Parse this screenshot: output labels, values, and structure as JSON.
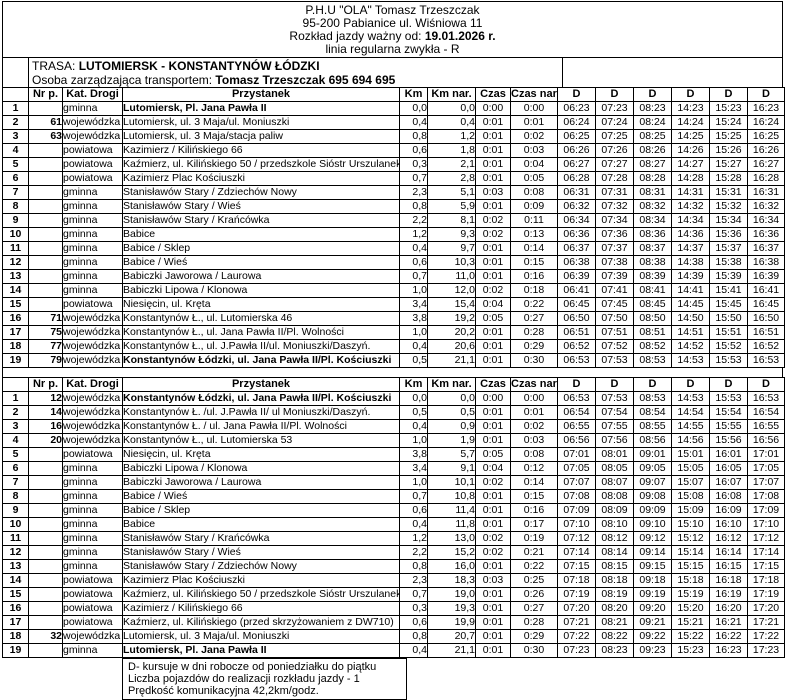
{
  "header": {
    "company": "P.H.U  \"OLA\" Tomasz Trzeszczak",
    "address": "95-200 Pabianice ul. Wiśniowa 11",
    "valid_label": "Rozkład jazdy ważny od: ",
    "valid_date": "19.01.2026 r.",
    "line_type": "linia regularna zwykła - R"
  },
  "route": {
    "trasa_label": "TRASA: ",
    "trasa_value": "LUTOMIERSK - KONSTANTYNÓW ŁÓDZKI",
    "manager_label": "Osoba zarządzająca transportem: ",
    "manager_value": "Tomasz Trzeszczak 695 694 695"
  },
  "columns": [
    "",
    "Nr p.",
    "Kat. Drogi",
    "Przystanek",
    "Km",
    "Km nar.",
    "Czas",
    "Czas nar.",
    "D",
    "D",
    "D",
    "D",
    "D",
    "D"
  ],
  "table1": {
    "rows": [
      {
        "c": [
          "1",
          "",
          "gminna",
          "Lutomiersk, Pl. Jana Pawła II",
          "0,0",
          "0,0",
          "0:00",
          "0:00",
          "06:23",
          "07:23",
          "08:23",
          "14:23",
          "15:23",
          "16:23"
        ],
        "b": true
      },
      {
        "c": [
          "2",
          "61",
          "wojewódzka",
          "Lutomiersk, ul. 3 Maja/ul. Moniuszki",
          "0,4",
          "0,4",
          "0:01",
          "0:01",
          "06:24",
          "07:24",
          "08:24",
          "14:24",
          "15:24",
          "16:24"
        ]
      },
      {
        "c": [
          "3",
          "63",
          "wojewódzka",
          "Lutomiersk, ul. 3 Maja/stacja paliw",
          "0,8",
          "1,2",
          "0:01",
          "0:02",
          "06:25",
          "07:25",
          "08:25",
          "14:25",
          "15:25",
          "16:25"
        ]
      },
      {
        "c": [
          "4",
          "",
          "powiatowa",
          "Kazimierz / Kilińskiego 66",
          "0,6",
          "1,8",
          "0:01",
          "0:03",
          "06:26",
          "07:26",
          "08:26",
          "14:26",
          "15:26",
          "16:26"
        ]
      },
      {
        "c": [
          "5",
          "",
          "powiatowa",
          "Kaźmierz, ul. Kilińskiego 50 / przedszkole Sióstr Urszulanek",
          "0,3",
          "2,1",
          "0:01",
          "0:04",
          "06:27",
          "07:27",
          "08:27",
          "14:27",
          "15:27",
          "16:27"
        ]
      },
      {
        "c": [
          "6",
          "",
          "powiatowa",
          "Kazimierz Plac Kościuszki",
          "0,7",
          "2,8",
          "0:01",
          "0:05",
          "06:28",
          "07:28",
          "08:28",
          "14:28",
          "15:28",
          "16:28"
        ]
      },
      {
        "c": [
          "7",
          "",
          "gminna",
          "Stanisławów Stary / Zdziechów Nowy",
          "2,3",
          "5,1",
          "0:03",
          "0:08",
          "06:31",
          "07:31",
          "08:31",
          "14:31",
          "15:31",
          "16:31"
        ]
      },
      {
        "c": [
          "8",
          "",
          "gminna",
          "Stanisławów Stary / Wieś",
          "0,8",
          "5,9",
          "0:01",
          "0:09",
          "06:32",
          "07:32",
          "08:32",
          "14:32",
          "15:32",
          "16:32"
        ]
      },
      {
        "c": [
          "9",
          "",
          "gminna",
          "Stanisławów Stary / Krańcówka",
          "2,2",
          "8,1",
          "0:02",
          "0:11",
          "06:34",
          "07:34",
          "08:34",
          "14:34",
          "15:34",
          "16:34"
        ]
      },
      {
        "c": [
          "10",
          "",
          "gminna",
          "Babice",
          "1,2",
          "9,3",
          "0:02",
          "0:13",
          "06:36",
          "07:36",
          "08:36",
          "14:36",
          "15:36",
          "16:36"
        ]
      },
      {
        "c": [
          "11",
          "",
          "gminna",
          "Babice / Sklep",
          "0,4",
          "9,7",
          "0:01",
          "0:14",
          "06:37",
          "07:37",
          "08:37",
          "14:37",
          "15:37",
          "16:37"
        ]
      },
      {
        "c": [
          "12",
          "",
          "gminna",
          "Babice / Wieś",
          "0,6",
          "10,3",
          "0:01",
          "0:15",
          "06:38",
          "07:38",
          "08:38",
          "14:38",
          "15:38",
          "16:38"
        ]
      },
      {
        "c": [
          "13",
          "",
          "gminna",
          "Babiczki Jaworowa / Laurowa",
          "0,7",
          "11,0",
          "0:01",
          "0:16",
          "06:39",
          "07:39",
          "08:39",
          "14:39",
          "15:39",
          "16:39"
        ]
      },
      {
        "c": [
          "14",
          "",
          "gminna",
          "Babiczki Lipowa / Klonowa",
          "1,0",
          "12,0",
          "0:02",
          "0:18",
          "06:41",
          "07:41",
          "08:41",
          "14:41",
          "15:41",
          "16:41"
        ]
      },
      {
        "c": [
          "15",
          "",
          "powiatowa",
          "Niesięcin, ul. Kręta",
          "3,4",
          "15,4",
          "0:04",
          "0:22",
          "06:45",
          "07:45",
          "08:45",
          "14:45",
          "15:45",
          "16:45"
        ]
      },
      {
        "c": [
          "16",
          "71",
          "wojewódzka",
          "Konstantynów Ł., ul. Lutomierska 46",
          "3,8",
          "19,2",
          "0:05",
          "0:27",
          "06:50",
          "07:50",
          "08:50",
          "14:50",
          "15:50",
          "16:50"
        ]
      },
      {
        "c": [
          "17",
          "75",
          "wojewódzka",
          "Konstantynów Ł., ul. Jana Pawła II/Pl. Wolności",
          "1,0",
          "20,2",
          "0:01",
          "0:28",
          "06:51",
          "07:51",
          "08:51",
          "14:51",
          "15:51",
          "16:51"
        ]
      },
      {
        "c": [
          "18",
          "77",
          "wojewódzka",
          "Konstantynów Ł., ul. J.Pawła II/ul. Moniuszki/Daszyń.",
          "0,4",
          "20,6",
          "0:01",
          "0:29",
          "06:52",
          "07:52",
          "08:52",
          "14:52",
          "15:52",
          "16:52"
        ]
      },
      {
        "c": [
          "19",
          "79",
          "wojewódzka",
          "Konstantynów Łódzki, ul. Jana Pawła II/Pl. Kościuszki",
          "0,5",
          "21,1",
          "0:01",
          "0:30",
          "06:53",
          "07:53",
          "08:53",
          "14:53",
          "15:53",
          "16:53"
        ],
        "b": true
      }
    ]
  },
  "table2": {
    "rows": [
      {
        "c": [
          "1",
          "12",
          "wojewódzka",
          "Konstantynów Łódzki, ul. Jana Pawła II/Pl. Kościuszki",
          "0,0",
          "0,0",
          "0:00",
          "0:00",
          "06:53",
          "07:53",
          "08:53",
          "14:53",
          "15:53",
          "16:53"
        ],
        "b": true
      },
      {
        "c": [
          "2",
          "14",
          "wojewódzka",
          "Konstantynów Ł. /ul. J.Pawła II/ ul Moniuszki/Daszyń.",
          "0,5",
          "0,5",
          "0:01",
          "0:01",
          "06:54",
          "07:54",
          "08:54",
          "14:54",
          "15:54",
          "16:54"
        ]
      },
      {
        "c": [
          "3",
          "16",
          "wojewódzka",
          "Konstantynów Ł. / ul. Jana Pawła II/Pl. Wolności",
          "0,4",
          "0,9",
          "0:01",
          "0:02",
          "06:55",
          "07:55",
          "08:55",
          "14:55",
          "15:55",
          "16:55"
        ]
      },
      {
        "c": [
          "4",
          "20",
          "wojewódzka",
          "Konstantynów Ł., ul. Lutomierska 53",
          "1,0",
          "1,9",
          "0:01",
          "0:03",
          "06:56",
          "07:56",
          "08:56",
          "14:56",
          "15:56",
          "16:56"
        ]
      },
      {
        "c": [
          "5",
          "",
          "powiatowa",
          "Niesięcin, ul. Kręta",
          "3,8",
          "5,7",
          "0:05",
          "0:08",
          "07:01",
          "08:01",
          "09:01",
          "15:01",
          "16:01",
          "17:01"
        ]
      },
      {
        "c": [
          "6",
          "",
          "gminna",
          "Babiczki Lipowa / Klonowa",
          "3,4",
          "9,1",
          "0:04",
          "0:12",
          "07:05",
          "08:05",
          "09:05",
          "15:05",
          "16:05",
          "17:05"
        ]
      },
      {
        "c": [
          "7",
          "",
          "gminna",
          "Babiczki Jaworowa / Laurowa",
          "1,0",
          "10,1",
          "0:02",
          "0:14",
          "07:07",
          "08:07",
          "09:07",
          "15:07",
          "16:07",
          "17:07"
        ]
      },
      {
        "c": [
          "8",
          "",
          "gminna",
          "Babice / Wieś",
          "0,7",
          "10,8",
          "0:01",
          "0:15",
          "07:08",
          "08:08",
          "09:08",
          "15:08",
          "16:08",
          "17:08"
        ]
      },
      {
        "c": [
          "9",
          "",
          "gminna",
          "Babice / Sklep",
          "0,6",
          "11,4",
          "0:01",
          "0:16",
          "07:09",
          "08:09",
          "09:09",
          "15:09",
          "16:09",
          "17:09"
        ]
      },
      {
        "c": [
          "10",
          "",
          "gminna",
          "Babice",
          "0,4",
          "11,8",
          "0:01",
          "0:17",
          "07:10",
          "08:10",
          "09:10",
          "15:10",
          "16:10",
          "17:10"
        ]
      },
      {
        "c": [
          "11",
          "",
          "gminna",
          "Stanisławów Stary / Krańcówka",
          "1,2",
          "13,0",
          "0:02",
          "0:19",
          "07:12",
          "08:12",
          "09:12",
          "15:12",
          "16:12",
          "17:12"
        ]
      },
      {
        "c": [
          "12",
          "",
          "gminna",
          "Stanisławów Stary / Wieś",
          "2,2",
          "15,2",
          "0:02",
          "0:21",
          "07:14",
          "08:14",
          "09:14",
          "15:14",
          "16:14",
          "17:14"
        ]
      },
      {
        "c": [
          "13",
          "",
          "gminna",
          "Stanisławów Stary / Zdziechów Nowy",
          "0,8",
          "16,0",
          "0:01",
          "0:22",
          "07:15",
          "08:15",
          "09:15",
          "15:15",
          "16:15",
          "17:15"
        ]
      },
      {
        "c": [
          "14",
          "",
          "powiatowa",
          "Kazimierz Plac Kościuszki",
          "2,3",
          "18,3",
          "0:03",
          "0:25",
          "07:18",
          "08:18",
          "09:18",
          "15:18",
          "16:18",
          "17:18"
        ]
      },
      {
        "c": [
          "15",
          "",
          "powiatowa",
          "Kaźmierz, ul. Kilińskiego 50 / przedszkole Sióstr Urszulanek",
          "0,7",
          "19,0",
          "0:01",
          "0:26",
          "07:19",
          "08:19",
          "09:19",
          "15:19",
          "16:19",
          "17:19"
        ]
      },
      {
        "c": [
          "16",
          "",
          "powiatowa",
          "Kazimierz / Kilińskiego 66",
          "0,3",
          "19,3",
          "0:01",
          "0:27",
          "07:20",
          "08:20",
          "09:20",
          "15:20",
          "16:20",
          "17:20"
        ]
      },
      {
        "c": [
          "17",
          "",
          "powiatowa",
          "Kaźmierz, ul. Kilińskiego (przed skrzyżowaniem z DW710)",
          "0,6",
          "19,9",
          "0:01",
          "0:28",
          "07:21",
          "08:21",
          "09:21",
          "15:21",
          "16:21",
          "17:21"
        ]
      },
      {
        "c": [
          "18",
          "32",
          "wojewódzka",
          "Lutomiersk, ul. 3 Maja/ul. Moniuszki",
          "0,8",
          "20,7",
          "0:01",
          "0:29",
          "07:22",
          "08:22",
          "09:22",
          "15:22",
          "16:22",
          "17:22"
        ]
      },
      {
        "c": [
          "19",
          "",
          "gminna",
          "Lutomiersk, Pl. Jana Pawła II",
          "0,4",
          "21,1",
          "0:01",
          "0:30",
          "07:23",
          "08:23",
          "09:23",
          "15:23",
          "16:23",
          "17:23"
        ],
        "b": true
      }
    ]
  },
  "footer": {
    "lines": [
      "D- kursuje w dni robocze od poniedziałku do piątku",
      "Liczba pojazdów do realizacji rozkładu jazdy - 1",
      "Prędkość komunikacyjna 42,2km/godz."
    ]
  }
}
